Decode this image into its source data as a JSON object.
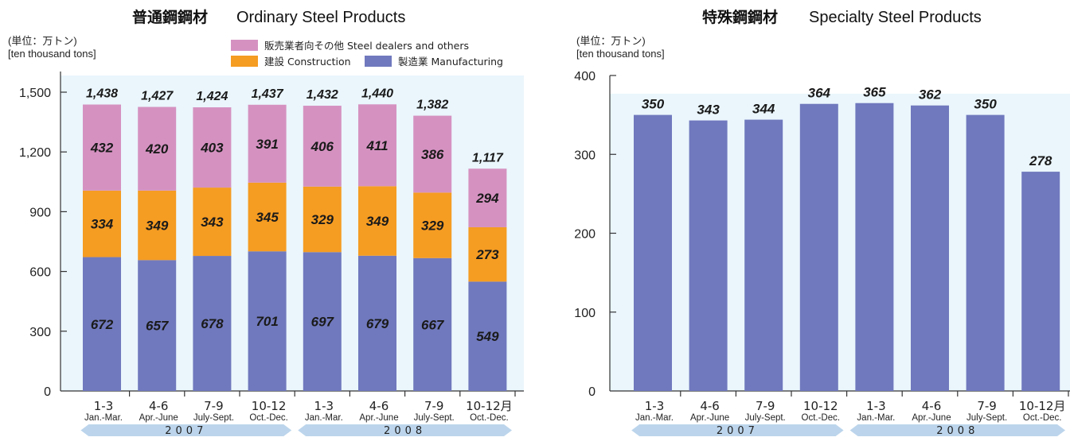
{
  "chart_data": [
    {
      "type": "bar",
      "stacked": true,
      "title_jp": "普通鋼鋼材",
      "title_en": "Ordinary Steel Products",
      "unit_jp": "(単位：万トン)",
      "unit_en": "[ten thousand tons]",
      "ylim": [
        0,
        1500
      ],
      "yticks": [
        "0",
        "300",
        "600",
        "900",
        "1,200",
        "1,500"
      ],
      "categories": [
        "1-3",
        "4-6",
        "7-9",
        "10-12",
        "1-3",
        "4-6",
        "7-9",
        "10-12月"
      ],
      "categories_en": [
        "Jan.-Mar.",
        "Apr.-June",
        "July-Sept.",
        "Oct.-Dec.",
        "Jan.-Mar.",
        "Apr.-June",
        "July-Sept.",
        "Oct.-Dec."
      ],
      "years": [
        "2007",
        "2008"
      ],
      "series": [
        {
          "name": "製造業 Manufacturing",
          "color": "#7079bd",
          "values": [
            672,
            657,
            678,
            701,
            697,
            679,
            667,
            549
          ]
        },
        {
          "name": "建設 Construction",
          "color": "#f59c22",
          "values": [
            334,
            349,
            343,
            345,
            329,
            349,
            329,
            273
          ]
        },
        {
          "name": "販売業者向その他 Steel dealers and others",
          "color": "#d592c1",
          "values": [
            432,
            420,
            403,
            391,
            406,
            411,
            386,
            294
          ]
        }
      ],
      "totals": [
        "1,438",
        "1,427",
        "1,424",
        "1,437",
        "1,432",
        "1,440",
        "1,382",
        "1,117"
      ],
      "background": "#eaf6fc"
    },
    {
      "type": "bar",
      "title_jp": "特殊鋼鋼材",
      "title_en": "Specialty Steel Products",
      "unit_jp": "(単位：万トン)",
      "unit_en": "[ten thousand tons]",
      "ylim": [
        0,
        400
      ],
      "yticks": [
        "0",
        "100",
        "200",
        "300",
        "400"
      ],
      "categories": [
        "1-3",
        "4-6",
        "7-9",
        "10-12",
        "1-3",
        "4-6",
        "7-9",
        "10-12月"
      ],
      "categories_en": [
        "Jan.-Mar.",
        "Apr.-June",
        "July-Sept.",
        "Oct.-Dec.",
        "Jan.-Mar.",
        "Apr.-June",
        "July-Sept.",
        "Oct.-Dec."
      ],
      "years": [
        "2007",
        "2008"
      ],
      "series": [
        {
          "color": "#7079bd",
          "values": [
            350,
            343,
            344,
            364,
            365,
            362,
            350,
            278
          ]
        }
      ],
      "background": "#eaf6fc"
    }
  ],
  "colors": {
    "year_band": "#bcd5ec",
    "axis": "#333333"
  }
}
